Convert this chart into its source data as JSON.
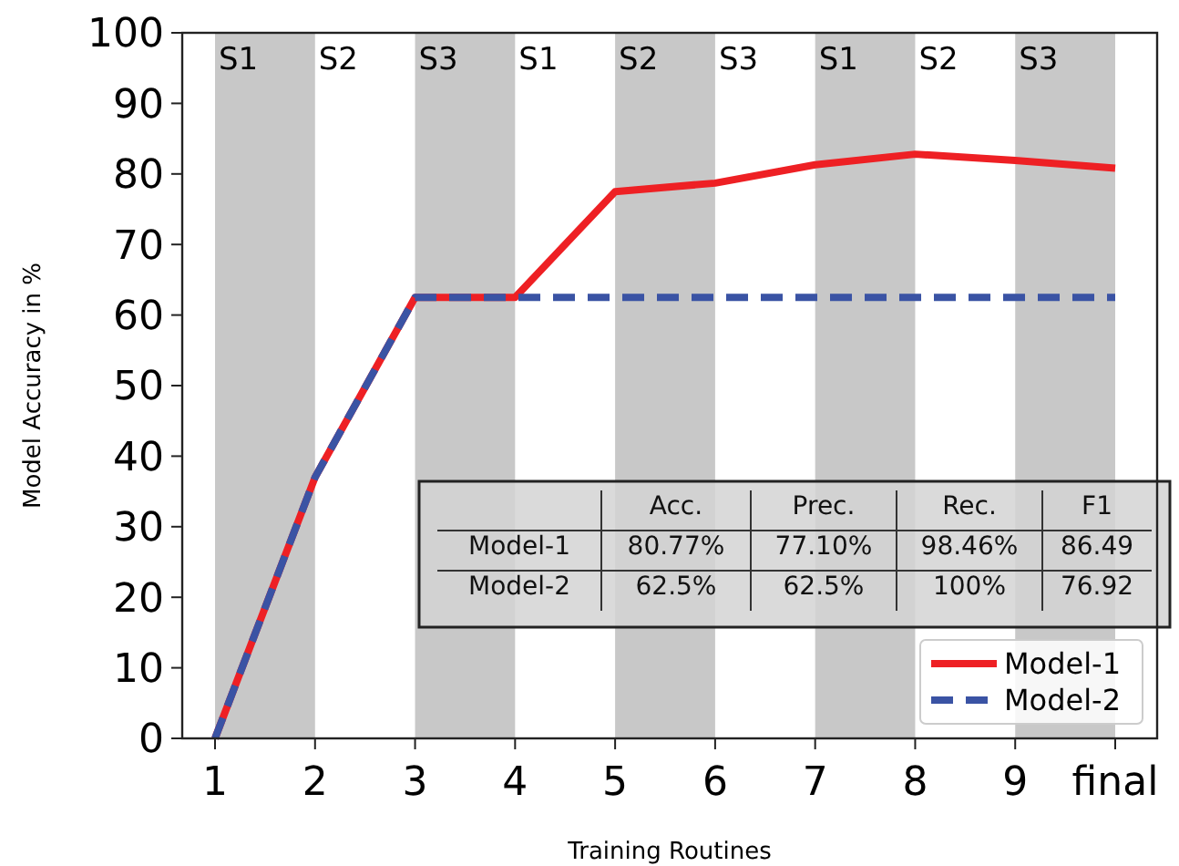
{
  "chart_data": {
    "type": "line",
    "xlabel": "Training Routines",
    "ylabel": "Model Accuracy in %",
    "categories": [
      "1",
      "2",
      "3",
      "4",
      "5",
      "6",
      "7",
      "8",
      "9",
      "final"
    ],
    "series": [
      {
        "name": "Model-1",
        "color": "#ee2024",
        "line_style": "solid",
        "values": [
          0,
          37,
          62.5,
          62.5,
          77.5,
          78.7,
          81.3,
          82.8,
          81.9,
          80.8
        ]
      },
      {
        "name": "Model-2",
        "color": "#3a53a4",
        "line_style": "dashed",
        "values": [
          0,
          37,
          62.5,
          62.5,
          62.5,
          62.5,
          62.5,
          62.5,
          62.5,
          62.5
        ]
      }
    ],
    "ylim": [
      0,
      100
    ],
    "yticks": [
      0,
      10,
      20,
      30,
      40,
      50,
      60,
      70,
      80,
      90,
      100
    ],
    "grid": false,
    "legend": "bottom right",
    "marker": "none",
    "bands": [
      {
        "axis": "x",
        "from": "1",
        "to": "2",
        "label": "S1",
        "color": "#c8c8c8"
      },
      {
        "axis": "x",
        "from": "3",
        "to": "4",
        "label": "S3",
        "color": "#c8c8c8"
      },
      {
        "axis": "x",
        "from": "5",
        "to": "6",
        "label": "S2",
        "color": "#c8c8c8"
      },
      {
        "axis": "x",
        "from": "7",
        "to": "8",
        "label": "S1",
        "color": "#c8c8c8"
      },
      {
        "axis": "x",
        "from": "9",
        "to": "final",
        "label": "S3",
        "color": "#c8c8c8"
      }
    ],
    "annotations": [
      {
        "text": "S2",
        "x": "2"
      },
      {
        "text": "S1",
        "x": "4"
      },
      {
        "text": "S3",
        "x": "6"
      },
      {
        "text": "S2",
        "x": "8"
      },
      "Acc.",
      "Prec.",
      "Rec.",
      "F1",
      "Model-1",
      "80.77%",
      "77.10%",
      "98.46%",
      "86.49",
      "Model-2",
      "62.5%",
      "62.5%",
      "100%",
      "76.92"
    ]
  }
}
